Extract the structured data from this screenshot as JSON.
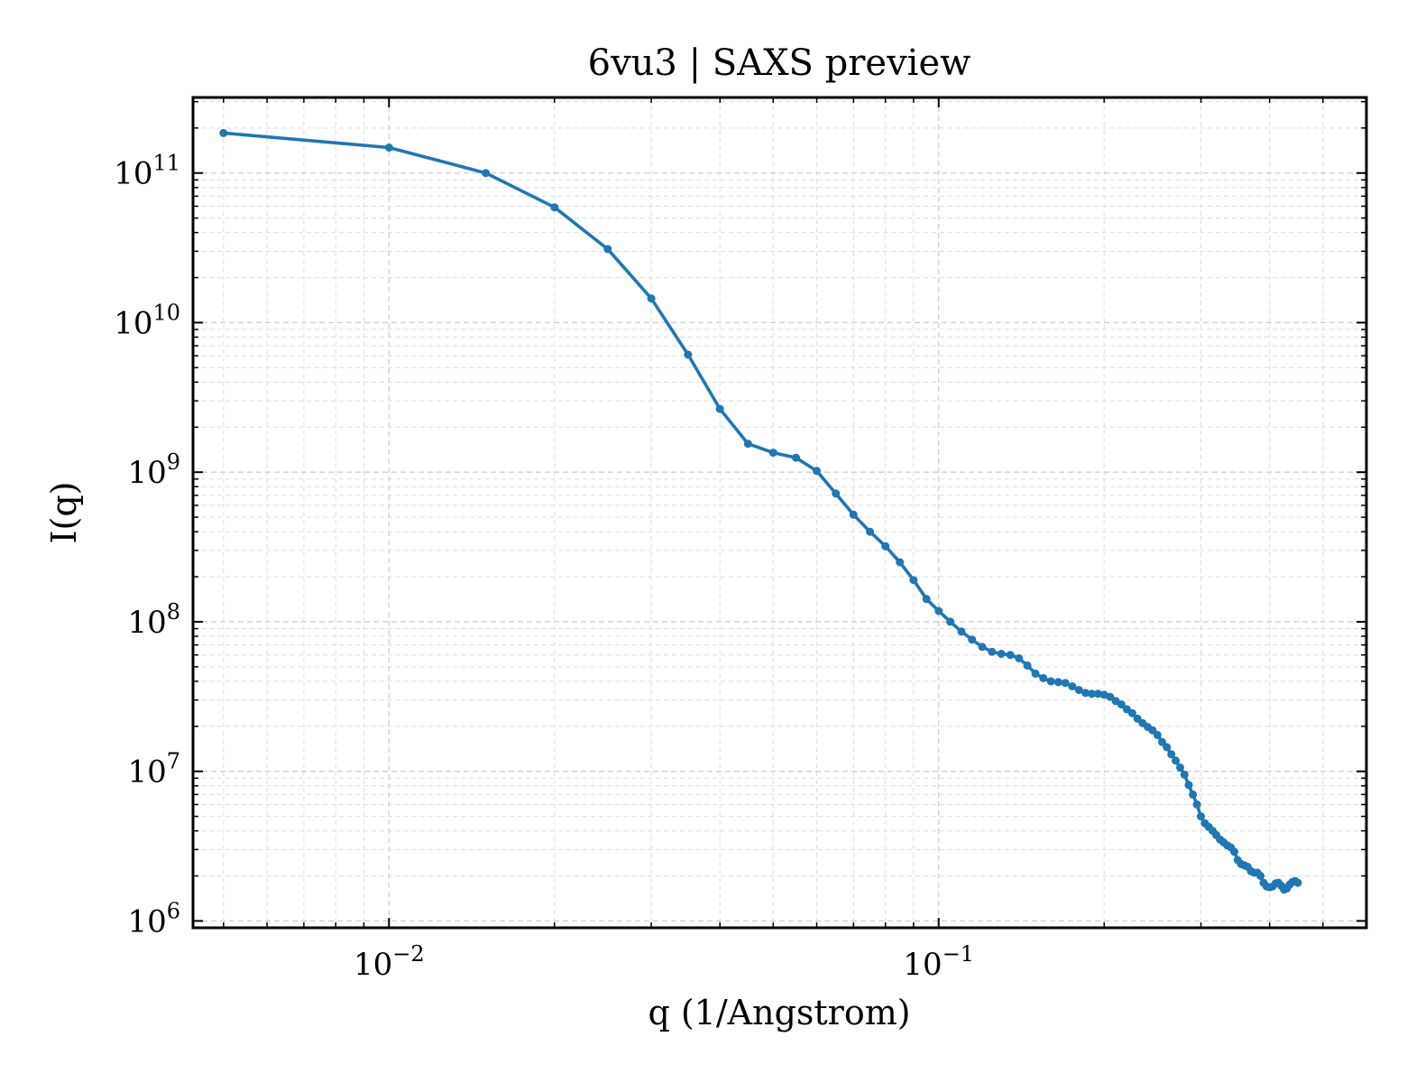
{
  "chart_data": {
    "type": "line",
    "title": "6vu3 | SAXS preview",
    "xlabel": "q (1/Angstrom)",
    "ylabel": "I(q)",
    "xscale": "log",
    "yscale": "log",
    "xlim": [
      0.0044,
      0.6
    ],
    "ylim": [
      900000,
      320000000000.0
    ],
    "grid": true,
    "legend": "none",
    "x_ticks": [
      {
        "value": 0.01,
        "base": "10",
        "exp": "−2"
      },
      {
        "value": 0.1,
        "base": "10",
        "exp": "−1"
      }
    ],
    "y_ticks": [
      {
        "value": 1000000.0,
        "base": "10",
        "exp": "6"
      },
      {
        "value": 10000000.0,
        "base": "10",
        "exp": "7"
      },
      {
        "value": 100000000.0,
        "base": "10",
        "exp": "8"
      },
      {
        "value": 1000000000.0,
        "base": "10",
        "exp": "9"
      },
      {
        "value": 10000000000.0,
        "base": "10",
        "exp": "10"
      },
      {
        "value": 100000000000.0,
        "base": "10",
        "exp": "11"
      }
    ],
    "series": [
      {
        "color": "#1f77b4",
        "marker": "dot",
        "points": [
          [
            0.005,
            185000000000.0
          ],
          [
            0.01,
            148000000000.0
          ],
          [
            0.015,
            100000000000.0
          ],
          [
            0.02,
            59000000000.0
          ],
          [
            0.025,
            31000000000.0
          ],
          [
            0.03,
            14500000000.0
          ],
          [
            0.035,
            6100000000.0
          ],
          [
            0.04,
            2650000000.0
          ],
          [
            0.045,
            1550000000.0
          ],
          [
            0.05,
            1350000000.0
          ],
          [
            0.055,
            1250000000.0
          ],
          [
            0.06,
            1020000000.0
          ],
          [
            0.065,
            720000000.0
          ],
          [
            0.07,
            520000000.0
          ],
          [
            0.075,
            400000000.0
          ],
          [
            0.08,
            320000000.0
          ],
          [
            0.085,
            250000000.0
          ],
          [
            0.09,
            190000000.0
          ],
          [
            0.095,
            142000000.0
          ],
          [
            0.1,
            118000000.0
          ],
          [
            0.105,
            100000000.0
          ],
          [
            0.11,
            86000000.0
          ],
          [
            0.115,
            76000000.0
          ],
          [
            0.12,
            68000000.0
          ],
          [
            0.125,
            63000000.0
          ],
          [
            0.13,
            61000000.0
          ],
          [
            0.135,
            60000000.0
          ],
          [
            0.14,
            57000000.0
          ],
          [
            0.145,
            51000000.0
          ],
          [
            0.15,
            45000000.0
          ],
          [
            0.155,
            42000000.0
          ],
          [
            0.16,
            40000000.0
          ],
          [
            0.165,
            39500000.0
          ],
          [
            0.17,
            39000000.0
          ],
          [
            0.175,
            37000000.0
          ],
          [
            0.18,
            35000000.0
          ],
          [
            0.185,
            33500000.0
          ],
          [
            0.19,
            33000000.0
          ],
          [
            0.195,
            33000000.0
          ],
          [
            0.2,
            32500000.0
          ],
          [
            0.205,
            31500000.0
          ],
          [
            0.21,
            29500000.0
          ],
          [
            0.215,
            28000000.0
          ],
          [
            0.22,
            26000000.0
          ],
          [
            0.225,
            24500000.0
          ],
          [
            0.23,
            22500000.0
          ],
          [
            0.235,
            21000000.0
          ],
          [
            0.24,
            19800000.0
          ],
          [
            0.245,
            18800000.0
          ],
          [
            0.25,
            17500000.0
          ],
          [
            0.255,
            15700000.0
          ],
          [
            0.26,
            14500000.0
          ],
          [
            0.265,
            13000000.0
          ],
          [
            0.27,
            11800000.0
          ],
          [
            0.275,
            10600000.0
          ],
          [
            0.28,
            9500000.0
          ],
          [
            0.285,
            8100000.0
          ],
          [
            0.29,
            7000000.0
          ],
          [
            0.295,
            6000000.0
          ],
          [
            0.3,
            5000000.0
          ],
          [
            0.305,
            4500000.0
          ],
          [
            0.31,
            4250000.0
          ],
          [
            0.315,
            4000000.0
          ],
          [
            0.32,
            3750000.0
          ],
          [
            0.325,
            3500000.0
          ],
          [
            0.33,
            3350000.0
          ],
          [
            0.335,
            3200000.0
          ],
          [
            0.34,
            3100000.0
          ],
          [
            0.345,
            2900000.0
          ],
          [
            0.35,
            2550000.0
          ],
          [
            0.355,
            2400000.0
          ],
          [
            0.36,
            2350000.0
          ],
          [
            0.365,
            2300000.0
          ],
          [
            0.37,
            2150000.0
          ],
          [
            0.375,
            2100000.0
          ],
          [
            0.38,
            2100000.0
          ],
          [
            0.385,
            2000000.0
          ],
          [
            0.39,
            1800000.0
          ],
          [
            0.395,
            1700000.0
          ],
          [
            0.4,
            1680000.0
          ],
          [
            0.405,
            1700000.0
          ],
          [
            0.41,
            1780000.0
          ],
          [
            0.415,
            1800000.0
          ],
          [
            0.42,
            1720000.0
          ],
          [
            0.425,
            1620000.0
          ],
          [
            0.43,
            1650000.0
          ],
          [
            0.435,
            1750000.0
          ],
          [
            0.44,
            1820000.0
          ],
          [
            0.445,
            1850000.0
          ],
          [
            0.45,
            1800000.0
          ]
        ]
      }
    ]
  }
}
